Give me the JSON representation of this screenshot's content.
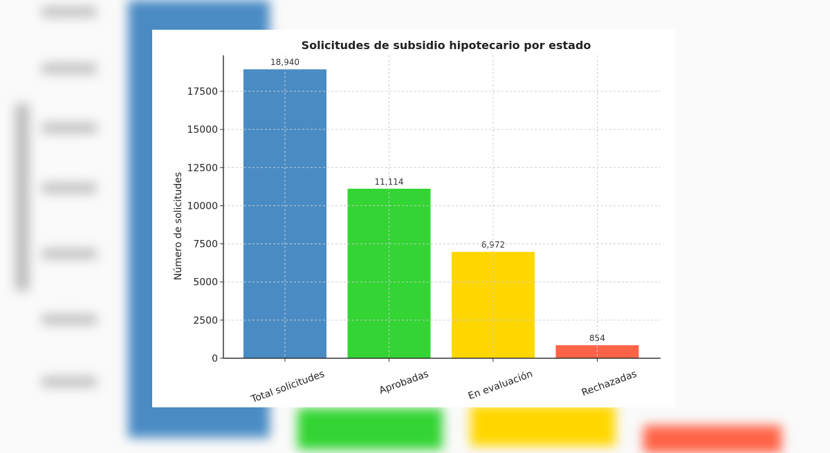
{
  "chart_data": {
    "type": "bar",
    "title": "Solicitudes de subsidio hipotecario por estado",
    "xlabel": "",
    "ylabel": "Número de solicitudes",
    "categories": [
      "Total solicitudes",
      "Aprobadas",
      "En evaluación",
      "Rechazadas"
    ],
    "values": [
      18940,
      11114,
      6972,
      854
    ],
    "value_labels": [
      "18,940",
      "11,114",
      "6,972",
      "854"
    ],
    "colors": [
      "#4a8bc4",
      "#33d433",
      "#ffd700",
      "#ff6347"
    ],
    "ylim": [
      0,
      19900
    ],
    "yticks": [
      0,
      2500,
      5000,
      7500,
      10000,
      12500,
      15000,
      17500
    ],
    "ytick_labels": [
      "0",
      "2500",
      "5000",
      "7500",
      "10000",
      "12500",
      "15000",
      "17500"
    ],
    "grid": true,
    "legend": "none"
  }
}
